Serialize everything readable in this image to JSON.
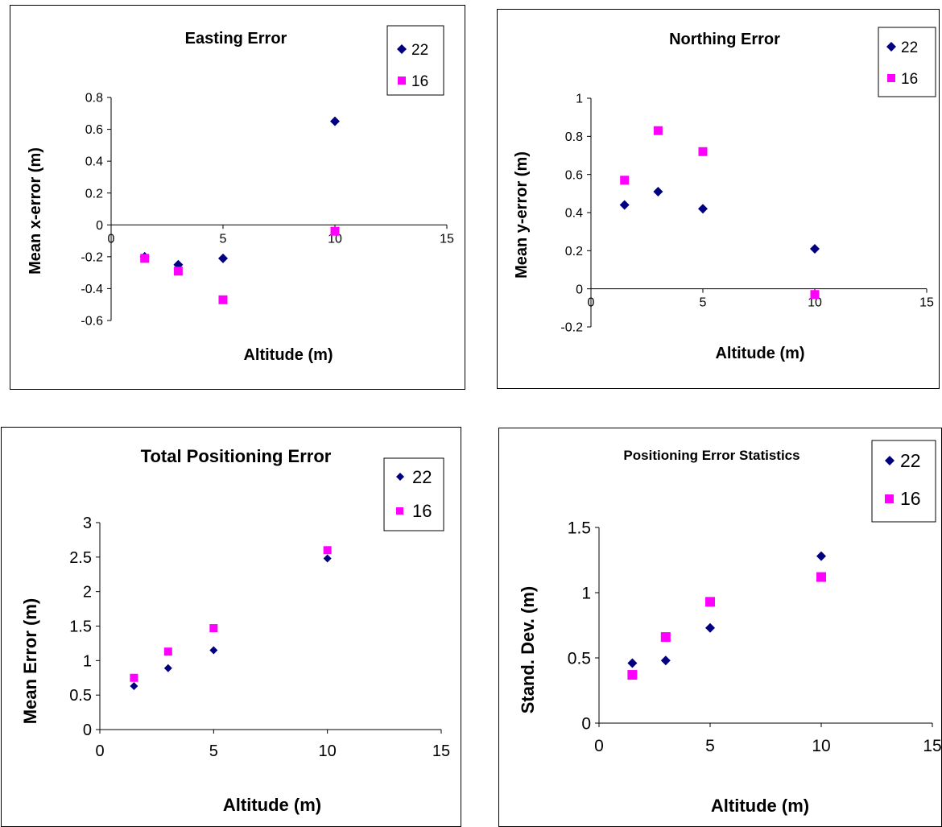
{
  "chart_data": [
    {
      "type": "scatter",
      "title": "Easting Error",
      "xlabel": "Altitude (m)",
      "ylabel": "Mean x-error (m)",
      "xlim": [
        0,
        15
      ],
      "ylim": [
        -0.6,
        0.8
      ],
      "x_ticks": [
        "0",
        "5",
        "10",
        "15"
      ],
      "y_ticks": [
        "-0.6",
        "-0.4",
        "-0.2",
        "0",
        "0.2",
        "0.4",
        "0.6",
        "0.8"
      ],
      "legend": "top-right",
      "grid": false,
      "series": [
        {
          "name": "22",
          "marker": "diamond",
          "color": "#000080",
          "x": [
            1.5,
            3,
            5,
            10
          ],
          "y": [
            -0.2,
            -0.25,
            -0.21,
            0.65
          ]
        },
        {
          "name": "16",
          "marker": "square",
          "color": "#ff00ff",
          "x": [
            1.5,
            3,
            5,
            10
          ],
          "y": [
            -0.21,
            -0.29,
            -0.47,
            -0.04
          ]
        }
      ]
    },
    {
      "type": "scatter",
      "title": "Northing Error",
      "xlabel": "Altitude (m)",
      "ylabel": "Mean y-error (m)",
      "xlim": [
        0,
        15
      ],
      "ylim": [
        -0.2,
        1
      ],
      "x_ticks": [
        "0",
        "5",
        "10",
        "15"
      ],
      "y_ticks": [
        "-0.2",
        "0",
        "0.2",
        "0.4",
        "0.6",
        "0.8",
        "1"
      ],
      "legend": "top-right",
      "grid": false,
      "series": [
        {
          "name": "22",
          "marker": "diamond",
          "color": "#000080",
          "x": [
            1.5,
            3,
            5,
            10
          ],
          "y": [
            0.44,
            0.51,
            0.42,
            0.21
          ]
        },
        {
          "name": "16",
          "marker": "square",
          "color": "#ff00ff",
          "x": [
            1.5,
            3,
            5,
            10
          ],
          "y": [
            0.57,
            0.83,
            0.72,
            -0.03
          ]
        }
      ]
    },
    {
      "type": "scatter",
      "title": "Total Positioning Error",
      "xlabel": "Altitude (m)",
      "ylabel": "Mean Error (m)",
      "xlim": [
        0,
        15
      ],
      "ylim": [
        0,
        3
      ],
      "x_ticks": [
        "0",
        "5",
        "10",
        "15"
      ],
      "y_ticks": [
        "0",
        "0.5",
        "1",
        "1.5",
        "2",
        "2.5",
        "3"
      ],
      "legend": "top-right",
      "grid": false,
      "series": [
        {
          "name": "22",
          "marker": "diamond",
          "color": "#000080",
          "x": [
            1.5,
            3,
            5,
            10
          ],
          "y": [
            0.63,
            0.89,
            1.15,
            2.48
          ]
        },
        {
          "name": "16",
          "marker": "square",
          "color": "#ff00ff",
          "x": [
            1.5,
            3,
            5,
            10
          ],
          "y": [
            0.75,
            1.13,
            1.47,
            2.6
          ]
        }
      ]
    },
    {
      "type": "scatter",
      "title": "Positioning Error Statistics",
      "xlabel": "Altitude (m)",
      "ylabel": "Stand. Dev. (m)",
      "xlim": [
        0,
        15
      ],
      "ylim": [
        0,
        1.5
      ],
      "x_ticks": [
        "0",
        "5",
        "10",
        "15"
      ],
      "y_ticks": [
        "0",
        "0.5",
        "1",
        "1.5"
      ],
      "legend": "top-right",
      "grid": false,
      "series": [
        {
          "name": "22",
          "marker": "diamond",
          "color": "#000080",
          "x": [
            1.5,
            3,
            5,
            10
          ],
          "y": [
            0.46,
            0.48,
            0.73,
            1.28
          ]
        },
        {
          "name": "16",
          "marker": "square",
          "color": "#ff00ff",
          "x": [
            1.5,
            3,
            5,
            10
          ],
          "y": [
            0.37,
            0.66,
            0.93,
            1.12
          ]
        }
      ]
    }
  ]
}
